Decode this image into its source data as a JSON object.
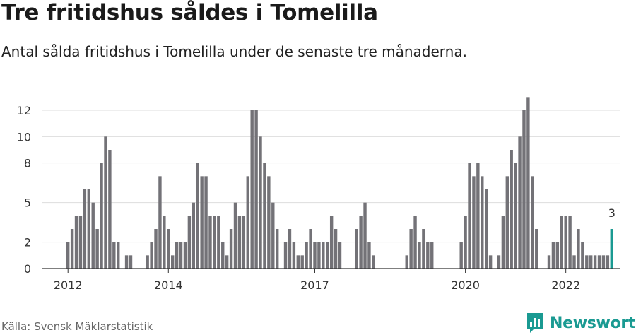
{
  "title": "Tre fritidshus såldes i Tomelilla",
  "subtitle": "Antal sålda fritidshus i Tomelilla under de senaste tre månaderna.",
  "source": "Källa: Svensk Mäklarstatistik",
  "brand": "Newsworthy",
  "colors": {
    "bar": "#737277",
    "highlight": "#1a9a92",
    "grid": "#dddddd",
    "axis": "#333333"
  },
  "chart_data": {
    "type": "bar",
    "y_ticks": [
      0,
      2,
      5,
      8,
      10,
      12
    ],
    "ylim": [
      0,
      13
    ],
    "x_tick_labels": [
      {
        "label": "2012",
        "index": 0
      },
      {
        "label": "2014",
        "index": 24
      },
      {
        "label": "2017",
        "index": 59
      },
      {
        "label": "2020",
        "index": 95
      },
      {
        "label": "2022",
        "index": 119
      }
    ],
    "values": [
      2,
      3,
      4,
      4,
      6,
      6,
      5,
      3,
      8,
      10,
      9,
      2,
      2,
      0,
      1,
      1,
      0,
      0,
      0,
      1,
      2,
      3,
      7,
      4,
      3,
      1,
      2,
      2,
      2,
      4,
      5,
      8,
      7,
      7,
      4,
      4,
      4,
      2,
      1,
      3,
      5,
      4,
      4,
      7,
      12,
      12,
      10,
      8,
      7,
      5,
      3,
      0,
      2,
      3,
      2,
      1,
      1,
      2,
      3,
      2,
      2,
      2,
      2,
      4,
      3,
      2,
      0,
      0,
      0,
      3,
      4,
      5,
      2,
      1,
      0,
      0,
      0,
      0,
      0,
      0,
      0,
      1,
      3,
      4,
      2,
      3,
      2,
      2,
      0,
      0,
      0,
      0,
      0,
      0,
      2,
      4,
      8,
      7,
      8,
      7,
      6,
      1,
      0,
      1,
      4,
      7,
      9,
      8,
      10,
      12,
      13,
      7,
      3,
      0,
      0,
      1,
      2,
      2,
      4,
      4,
      4,
      1,
      3,
      2,
      1,
      1,
      1,
      1,
      1,
      1,
      3
    ],
    "highlight_index": 130,
    "highlight_label": "3"
  }
}
